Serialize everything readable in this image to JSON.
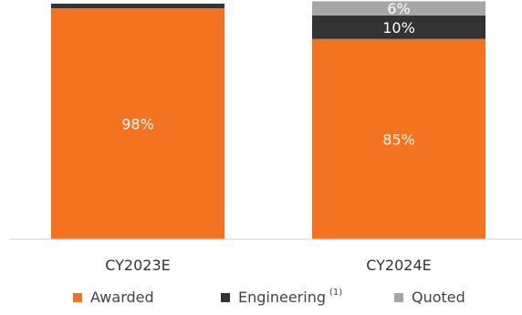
{
  "chart_data": {
    "type": "bar",
    "stacked": true,
    "percent": true,
    "categories": [
      "CY2023E",
      "CY2024E"
    ],
    "series": [
      {
        "name": "Awarded",
        "color": "#F47321",
        "values": [
          98,
          85
        ],
        "labels": [
          "98%",
          "85%"
        ]
      },
      {
        "name": "Engineering",
        "color": "#333333",
        "values": [
          2,
          10
        ],
        "labels": [
          "",
          "10%"
        ]
      },
      {
        "name": "Quoted",
        "color": "#A6A6A6",
        "values": [
          0,
          6
        ],
        "labels": [
          "",
          "6%"
        ]
      }
    ],
    "legend_position": "bottom",
    "grid": false,
    "ylim": [
      0,
      100
    ]
  },
  "legend": {
    "awarded": "Awarded",
    "engineering": "Engineering",
    "engineering_note": "(1)",
    "quoted": "Quoted"
  }
}
